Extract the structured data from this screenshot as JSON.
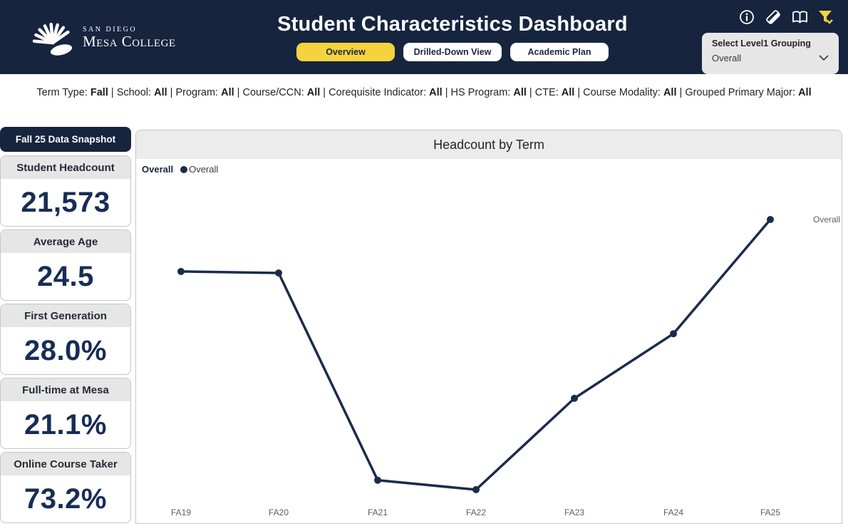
{
  "header": {
    "logo": {
      "line1": "SAN DIEGO",
      "line2": "Mesa College"
    },
    "title": "Student Characteristics Dashboard",
    "tabs": [
      {
        "label": "Overview",
        "active": true
      },
      {
        "label": "Drilled-Down View",
        "active": false
      },
      {
        "label": "Academic Plan",
        "active": false
      }
    ],
    "icons": [
      "info-icon",
      "eraser-icon",
      "book-icon",
      "filter-funnel-icon"
    ],
    "grouping": {
      "label": "Select Level1 Grouping",
      "value": "Overall"
    }
  },
  "filter_bar": {
    "items": [
      {
        "label": "Term Type",
        "value": "Fall"
      },
      {
        "label": "School",
        "value": "All"
      },
      {
        "label": "Program",
        "value": "All"
      },
      {
        "label": "Course/CCN",
        "value": "All"
      },
      {
        "label": "Corequisite Indicator",
        "value": "All"
      },
      {
        "label": "HS Program",
        "value": "All"
      },
      {
        "label": "CTE",
        "value": "All"
      },
      {
        "label": "Course Modality",
        "value": "All"
      },
      {
        "label": "Grouped Primary Major",
        "value": "All"
      }
    ],
    "separator": " | "
  },
  "sidebar": {
    "snapshot_label": "Fall 25 Data Snapshot",
    "cards": [
      {
        "title": "Student Headcount",
        "value": "21,573"
      },
      {
        "title": "Average Age",
        "value": "24.5"
      },
      {
        "title": "First Generation",
        "value": "28.0%"
      },
      {
        "title": "Full-time at Mesa",
        "value": "21.1%"
      },
      {
        "title": "Online Course Taker",
        "value": "73.2%"
      }
    ]
  },
  "chart_data": {
    "type": "line",
    "title": "Headcount by Term",
    "categories": [
      "FA19",
      "FA20",
      "FA21",
      "FA22",
      "FA23",
      "FA24",
      "FA25"
    ],
    "series": [
      {
        "name": "Overall",
        "values": [
          20520,
          20490,
          16290,
          16100,
          17950,
          19260,
          21573
        ]
      }
    ],
    "legend": {
      "title": "Overall",
      "items": [
        "Overall"
      ],
      "position": "top-left"
    },
    "end_label": "Overall",
    "xlabel": "",
    "ylabel": "",
    "ylim": [
      16000,
      22000
    ],
    "grid": false,
    "y_axis_visible": false
  },
  "colors": {
    "navy": "#16243e",
    "line_navy": "#1b2b4b",
    "value_navy": "#172d55",
    "accent_yellow": "#f5d33f",
    "band_gray": "#e6e6e6",
    "axis_text": "#605e5c"
  }
}
